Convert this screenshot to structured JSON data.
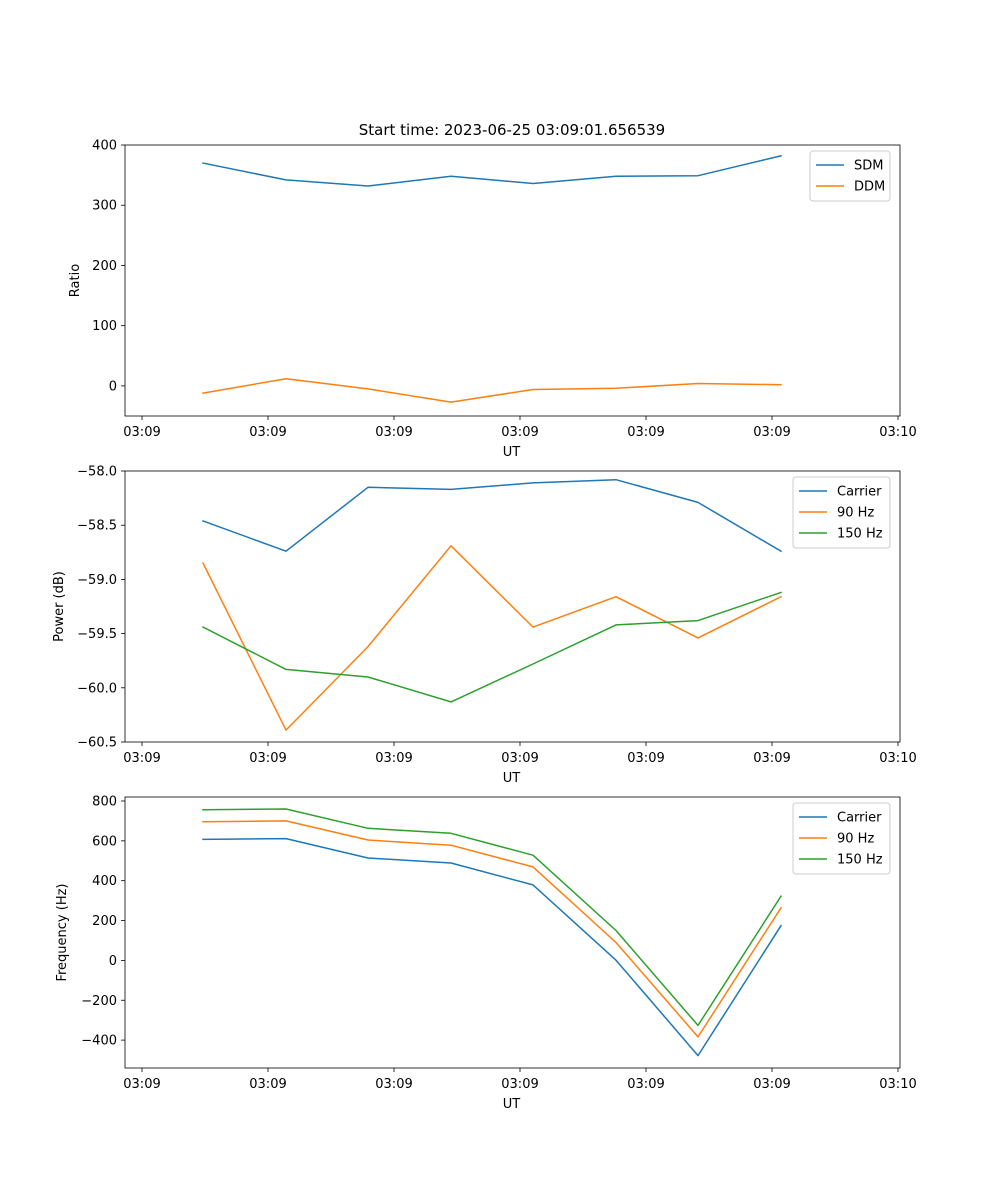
{
  "figure": {
    "title": "Start time: 2023-06-25 03:09:01.656539"
  },
  "colors": {
    "blue": "#1f77b4",
    "orange": "#ff7f0e",
    "green": "#2ca02c"
  },
  "chart_data": [
    {
      "type": "line",
      "title": "Start time: 2023-06-25 03:09:01.656539",
      "xlabel": "UT",
      "ylabel": "Ratio",
      "xticklabels": [
        "03:09",
        "03:09",
        "03:09",
        "03:09",
        "03:09",
        "03:09",
        "03:10"
      ],
      "ylim": [
        -50,
        400
      ],
      "yticks": [
        0,
        100,
        200,
        300,
        400
      ],
      "legend": "top-right",
      "grid": false,
      "series": [
        {
          "name": "SDM",
          "color": "#1f77b4",
          "values": [
            370,
            342,
            332,
            348,
            336,
            348,
            349,
            382
          ]
        },
        {
          "name": "DDM",
          "color": "#ff7f0e",
          "values": [
            -12,
            12,
            -5,
            -27,
            -6,
            -4,
            4,
            2
          ]
        }
      ]
    },
    {
      "type": "line",
      "title": "",
      "xlabel": "UT",
      "ylabel": "Power (dB)",
      "xticklabels": [
        "03:09",
        "03:09",
        "03:09",
        "03:09",
        "03:09",
        "03:09",
        "03:10"
      ],
      "ylim": [
        -60.5,
        -58.0
      ],
      "yticks": [
        -60.5,
        -60.0,
        -59.5,
        -59.0,
        -58.5,
        -58.0
      ],
      "yticklabels": [
        "−60.5",
        "−60.0",
        "−59.5",
        "−59.0",
        "−58.5",
        "−58.0"
      ],
      "legend": "top-right",
      "grid": false,
      "series": [
        {
          "name": "Carrier",
          "color": "#1f77b4",
          "values": [
            -58.46,
            -58.74,
            -58.15,
            -58.17,
            -58.11,
            -58.08,
            -58.29,
            -58.74
          ]
        },
        {
          "name": "90 Hz",
          "color": "#ff7f0e",
          "values": [
            -58.85,
            -60.39,
            -59.62,
            -58.69,
            -59.44,
            -59.16,
            -59.54,
            -59.16
          ]
        },
        {
          "name": "150 Hz",
          "color": "#2ca02c",
          "values": [
            -59.44,
            -59.83,
            -59.9,
            -60.13,
            -59.78,
            -59.42,
            -59.38,
            -59.12
          ]
        }
      ]
    },
    {
      "type": "line",
      "title": "",
      "xlabel": "UT",
      "ylabel": "Frequency (Hz)",
      "xticklabels": [
        "03:09",
        "03:09",
        "03:09",
        "03:09",
        "03:09",
        "03:09",
        "03:10"
      ],
      "ylim": [
        -540,
        820
      ],
      "yticks": [
        -400,
        -200,
        0,
        200,
        400,
        600,
        800
      ],
      "yticklabels": [
        "−400",
        "−200",
        "0",
        "200",
        "400",
        "600",
        "800"
      ],
      "legend": "top-right",
      "grid": false,
      "series": [
        {
          "name": "Carrier",
          "color": "#1f77b4",
          "values": [
            607,
            611,
            514,
            489,
            379,
            1,
            -478,
            174
          ]
        },
        {
          "name": "90 Hz",
          "color": "#ff7f0e",
          "values": [
            696,
            700,
            604,
            578,
            469,
            90,
            -384,
            264
          ]
        },
        {
          "name": "150 Hz",
          "color": "#2ca02c",
          "values": [
            756,
            760,
            663,
            638,
            528,
            150,
            -326,
            322
          ]
        }
      ]
    }
  ]
}
